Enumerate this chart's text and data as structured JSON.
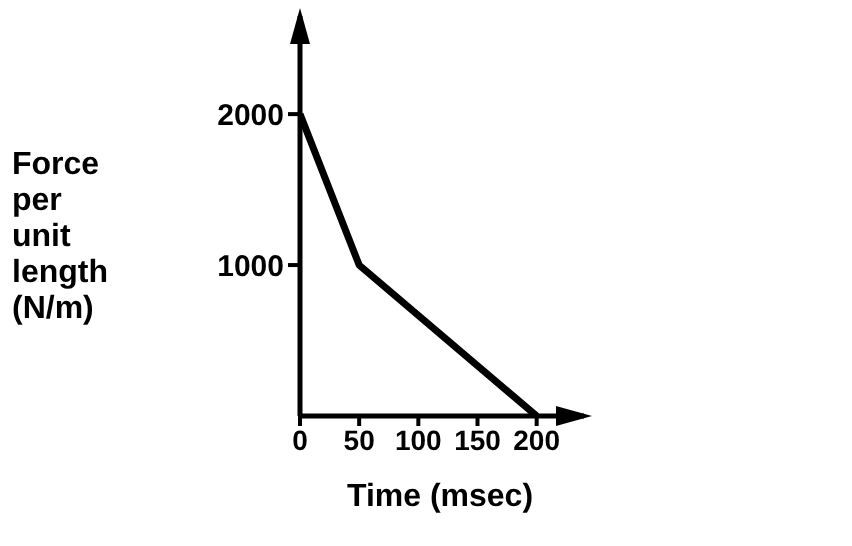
{
  "chart_data": {
    "type": "line",
    "xlabel": "Time (msec)",
    "ylabel": "Force per unit length (N/m)",
    "x": [
      0,
      50,
      200
    ],
    "series": [
      {
        "color": "#000000",
        "values": [
          2000,
          1000,
          0
        ]
      }
    ],
    "xlim": [
      0,
      240
    ],
    "ylim": [
      0,
      2650
    ],
    "xticks": [
      0,
      50,
      100,
      150,
      200
    ],
    "yticks": [
      1000,
      2000
    ],
    "marker": "none",
    "line_style": "solid"
  }
}
